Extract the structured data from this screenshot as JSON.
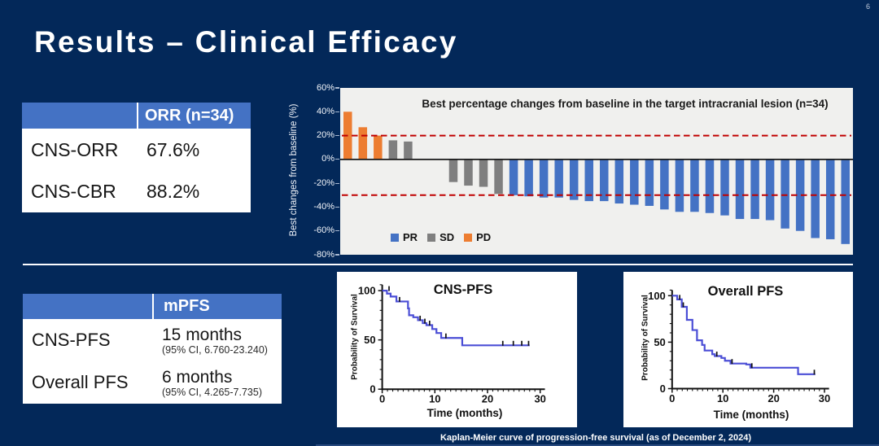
{
  "slide": {
    "title": "Results – Clinical Efficacy",
    "page_number": "6",
    "caption": "Kaplan-Meier curve of progression-free survival (as of December 2, 2024)"
  },
  "colors": {
    "background": "#032859",
    "accent_blue": "#4472C4",
    "bar_gray": "#7F7F7F",
    "bar_orange": "#ED7D31",
    "reference_line_red": "#C00000",
    "km_curve_blue": "#4B4ED6",
    "waterfall_plot_background": "#F0F0EE",
    "divider_white": "#FFFFFF"
  },
  "orr_table": {
    "header": [
      "",
      "ORR (n=34)"
    ],
    "rows": [
      {
        "label": "CNS-ORR",
        "value": "67.6%"
      },
      {
        "label": "CNS-CBR",
        "value": "88.2%"
      }
    ]
  },
  "mpfs_table": {
    "header": [
      "",
      "mPFS"
    ],
    "rows": [
      {
        "label": "CNS-PFS",
        "value": "15 months",
        "ci": "(95% CI, 6.760-23.240)"
      },
      {
        "label": "Overall PFS",
        "value": "6 months",
        "ci": "(95% CI, 4.265-7.735)"
      }
    ]
  },
  "chart_data": [
    {
      "type": "bar",
      "subtype": "waterfall",
      "title": "Best percentage changes from baseline in the target intracranial lesion (n=34)",
      "xlabel": "",
      "ylabel": "Best changes from baseline (%)",
      "n": 34,
      "ylim": [
        -80,
        60
      ],
      "yticks": [
        60,
        40,
        20,
        0,
        -20,
        -40,
        -60,
        -80
      ],
      "ytick_labels": [
        "60%",
        "40%",
        "20%",
        "0%",
        "-20%",
        "-40%",
        "-60%",
        "-80%"
      ],
      "reference_lines": [
        20,
        -30
      ],
      "grid": false,
      "legend_position": "bottom-left-inside",
      "legend": [
        {
          "label": "PR",
          "color": "#4472C4"
        },
        {
          "label": "SD",
          "color": "#7F7F7F"
        },
        {
          "label": "PD",
          "color": "#ED7D31"
        }
      ],
      "values": [
        40,
        27,
        20,
        16,
        15,
        0,
        0,
        -19,
        -22,
        -23,
        -29,
        -30,
        -31,
        -32,
        -32,
        -34,
        -35,
        -35,
        -37,
        -38,
        -39,
        -42,
        -44,
        -44,
        -45,
        -47,
        -50,
        -50,
        -51,
        -58,
        -60,
        -66,
        -67,
        -71
      ],
      "groups": [
        "PD",
        "PD",
        "PD",
        "SD",
        "SD",
        "SD",
        "SD",
        "SD",
        "SD",
        "SD",
        "SD",
        "PR",
        "PR",
        "PR",
        "PR",
        "PR",
        "PR",
        "PR",
        "PR",
        "PR",
        "PR",
        "PR",
        "PR",
        "PR",
        "PR",
        "PR",
        "PR",
        "PR",
        "PR",
        "PR",
        "PR",
        "PR",
        "PR",
        "PR"
      ]
    },
    {
      "type": "line",
      "subtype": "kaplan-meier",
      "title": "CNS-PFS",
      "xlabel": "Time (months)",
      "ylabel": "Probability of Survival",
      "xlim": [
        0,
        30
      ],
      "ylim": [
        0,
        100
      ],
      "xticks": [
        0,
        10,
        20,
        30
      ],
      "yticks": [
        0,
        50,
        100
      ],
      "steps": [
        [
          0,
          100
        ],
        [
          0.9,
          100
        ],
        [
          0.9,
          97
        ],
        [
          1.6,
          97
        ],
        [
          1.6,
          94
        ],
        [
          2.7,
          94
        ],
        [
          2.7,
          89
        ],
        [
          4.9,
          89
        ],
        [
          4.9,
          82
        ],
        [
          5.1,
          82
        ],
        [
          5.1,
          75
        ],
        [
          5.9,
          75
        ],
        [
          5.9,
          73
        ],
        [
          6.8,
          73
        ],
        [
          6.8,
          70
        ],
        [
          7.7,
          70
        ],
        [
          7.7,
          67
        ],
        [
          8.4,
          67
        ],
        [
          8.4,
          65
        ],
        [
          9.5,
          65
        ],
        [
          9.5,
          61
        ],
        [
          10.3,
          61
        ],
        [
          10.3,
          57
        ],
        [
          11.2,
          57
        ],
        [
          11.2,
          52
        ],
        [
          15.2,
          52
        ],
        [
          15.2,
          44.5
        ],
        [
          28,
          44.5
        ]
      ],
      "censor_marks": [
        [
          1.3,
          100
        ],
        [
          3.3,
          89
        ],
        [
          7.2,
          70
        ],
        [
          8.1,
          67
        ],
        [
          9.0,
          65
        ],
        [
          12.1,
          52
        ],
        [
          22.9,
          44.5
        ],
        [
          24.9,
          44.5
        ],
        [
          26.5,
          44.5
        ],
        [
          27.8,
          44.5
        ]
      ]
    },
    {
      "type": "line",
      "subtype": "kaplan-meier",
      "title": "Overall PFS",
      "xlabel": "Time  (months)",
      "ylabel": "Probability of Survival",
      "xlim": [
        0,
        30
      ],
      "ylim": [
        0,
        100
      ],
      "xticks": [
        0,
        10,
        20,
        30
      ],
      "yticks": [
        0,
        50,
        100
      ],
      "steps": [
        [
          0,
          100
        ],
        [
          1.0,
          100
        ],
        [
          1.0,
          96
        ],
        [
          1.9,
          96
        ],
        [
          1.9,
          88
        ],
        [
          2.9,
          88
        ],
        [
          2.9,
          74
        ],
        [
          4.0,
          74
        ],
        [
          4.0,
          63
        ],
        [
          4.9,
          63
        ],
        [
          4.9,
          52
        ],
        [
          5.9,
          52
        ],
        [
          5.9,
          47
        ],
        [
          6.4,
          47
        ],
        [
          6.4,
          41
        ],
        [
          7.9,
          41
        ],
        [
          7.9,
          37
        ],
        [
          8.4,
          37
        ],
        [
          8.4,
          35
        ],
        [
          9.7,
          35
        ],
        [
          9.7,
          33
        ],
        [
          10.4,
          33
        ],
        [
          10.4,
          30
        ],
        [
          11.5,
          30
        ],
        [
          11.5,
          27
        ],
        [
          14.6,
          27
        ],
        [
          14.6,
          26
        ],
        [
          15.4,
          26
        ],
        [
          15.4,
          22.5
        ],
        [
          24.8,
          22.5
        ],
        [
          24.8,
          15.5
        ],
        [
          28.2,
          15.5
        ]
      ],
      "censor_marks": [
        [
          1.5,
          96
        ],
        [
          2.2,
          88
        ],
        [
          8.8,
          35
        ],
        [
          11.8,
          27
        ],
        [
          15.7,
          22.5
        ],
        [
          28.0,
          15.5
        ]
      ]
    }
  ]
}
